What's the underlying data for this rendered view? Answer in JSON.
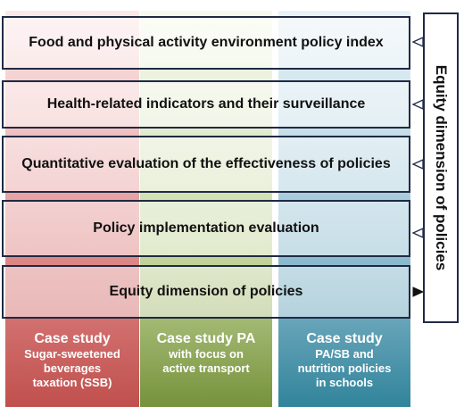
{
  "bands": [
    "Food and physical activity environment policy index",
    "Health-related indicators and their surveillance",
    "Quantitative evaluation of the effectiveness of policies",
    "Policy implementation evaluation",
    "Equity dimension of policies"
  ],
  "side_label": "Equity dimension of policies",
  "case_studies": [
    {
      "title": "Case study",
      "lines": [
        "Sugar-sweetened",
        "beverages",
        "taxation (SSB)"
      ],
      "color": "#c0504d"
    },
    {
      "title": "Case study PA",
      "lines": [
        "with focus on",
        "active transport"
      ],
      "color": "#76923c"
    },
    {
      "title": "Case study",
      "lines": [
        "PA/SB and",
        "nutrition policies",
        "in schools"
      ],
      "color": "#31849b"
    }
  ],
  "colors": {
    "border": "#1f2a44"
  }
}
